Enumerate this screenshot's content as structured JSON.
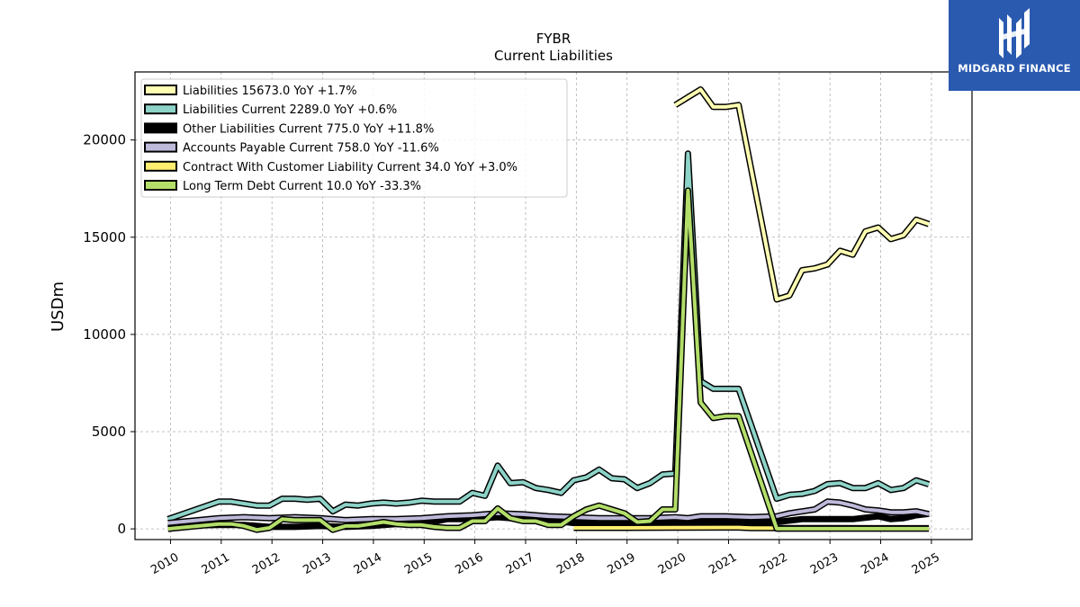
{
  "brand": {
    "name": "MIDGARD FINANCE",
    "color": "#2a5ab0"
  },
  "chart_data": {
    "type": "line",
    "title": "FYBR",
    "subtitle": "Current  Liabilities",
    "xlabel": "",
    "ylabel": "USDm",
    "xlim": [
      2009.3,
      2025.8
    ],
    "ylim": [
      -550,
      23500
    ],
    "x_ticks": [
      "2010",
      "2011",
      "2012",
      "2013",
      "2014",
      "2015",
      "2016",
      "2017",
      "2018",
      "2019",
      "2020",
      "2021",
      "2022",
      "2023",
      "2024",
      "2025"
    ],
    "y_ticks": [
      "0",
      "5000",
      "10000",
      "15000",
      "20000"
    ],
    "grid": true,
    "legend_position": "top-left",
    "series": [
      {
        "name": "Liabilities  15673.0 YoY +1.7%",
        "color": "#ffffb3",
        "points": [
          [
            2019.95,
            21800
          ],
          [
            2020.2,
            22200
          ],
          [
            2020.45,
            22600
          ],
          [
            2020.7,
            21700
          ],
          [
            2020.95,
            21700
          ],
          [
            2021.2,
            21800
          ],
          [
            2021.95,
            11800
          ],
          [
            2022.2,
            12000
          ],
          [
            2022.45,
            13300
          ],
          [
            2022.7,
            13400
          ],
          [
            2022.95,
            13600
          ],
          [
            2023.2,
            14300
          ],
          [
            2023.45,
            14100
          ],
          [
            2023.7,
            15300
          ],
          [
            2023.95,
            15500
          ],
          [
            2024.2,
            14900
          ],
          [
            2024.45,
            15100
          ],
          [
            2024.7,
            15900
          ],
          [
            2024.95,
            15673
          ]
        ]
      },
      {
        "name": "Liabilities Current  2289.0 YoY +0.6%",
        "color": "#8dd3c7",
        "points": [
          [
            2009.95,
            500
          ],
          [
            2010.95,
            1400
          ],
          [
            2011.2,
            1400
          ],
          [
            2011.45,
            1300
          ],
          [
            2011.7,
            1200
          ],
          [
            2011.95,
            1200
          ],
          [
            2012.2,
            1550
          ],
          [
            2012.45,
            1550
          ],
          [
            2012.7,
            1500
          ],
          [
            2012.95,
            1550
          ],
          [
            2013.2,
            900
          ],
          [
            2013.45,
            1250
          ],
          [
            2013.7,
            1200
          ],
          [
            2013.95,
            1300
          ],
          [
            2014.2,
            1350
          ],
          [
            2014.45,
            1300
          ],
          [
            2014.7,
            1350
          ],
          [
            2014.95,
            1450
          ],
          [
            2015.2,
            1400
          ],
          [
            2015.45,
            1400
          ],
          [
            2015.7,
            1400
          ],
          [
            2015.95,
            1850
          ],
          [
            2016.2,
            1700
          ],
          [
            2016.45,
            3250
          ],
          [
            2016.7,
            2350
          ],
          [
            2016.95,
            2400
          ],
          [
            2017.2,
            2100
          ],
          [
            2017.45,
            2000
          ],
          [
            2017.7,
            1850
          ],
          [
            2017.95,
            2500
          ],
          [
            2018.2,
            2650
          ],
          [
            2018.45,
            3050
          ],
          [
            2018.7,
            2600
          ],
          [
            2018.95,
            2550
          ],
          [
            2019.2,
            2100
          ],
          [
            2019.45,
            2350
          ],
          [
            2019.7,
            2800
          ],
          [
            2019.95,
            2850
          ],
          [
            2020.2,
            19300
          ],
          [
            2020.45,
            7600
          ],
          [
            2020.7,
            7200
          ],
          [
            2020.95,
            7200
          ],
          [
            2021.2,
            7200
          ],
          [
            2021.95,
            1550
          ],
          [
            2022.2,
            1750
          ],
          [
            2022.45,
            1800
          ],
          [
            2022.7,
            1950
          ],
          [
            2022.95,
            2300
          ],
          [
            2023.2,
            2350
          ],
          [
            2023.45,
            2100
          ],
          [
            2023.7,
            2100
          ],
          [
            2023.95,
            2350
          ],
          [
            2024.2,
            2000
          ],
          [
            2024.45,
            2100
          ],
          [
            2024.7,
            2500
          ],
          [
            2024.95,
            2289
          ]
        ]
      },
      {
        "name": "Other Liabilities Current  775.0 YoY +11.8%",
        "color": "#000000",
        "points": [
          [
            2009.95,
            150
          ],
          [
            2010.95,
            200
          ],
          [
            2011.45,
            200
          ],
          [
            2011.95,
            100
          ],
          [
            2012.45,
            100
          ],
          [
            2012.95,
            150
          ],
          [
            2013.45,
            100
          ],
          [
            2013.95,
            150
          ],
          [
            2014.45,
            250
          ],
          [
            2014.95,
            250
          ],
          [
            2015.45,
            500
          ],
          [
            2015.95,
            500
          ],
          [
            2016.45,
            600
          ],
          [
            2016.95,
            500
          ],
          [
            2017.45,
            450
          ],
          [
            2017.95,
            300
          ],
          [
            2018.45,
            300
          ],
          [
            2018.95,
            350
          ],
          [
            2019.45,
            350
          ],
          [
            2019.95,
            350
          ],
          [
            2020.45,
            350
          ],
          [
            2020.95,
            350
          ],
          [
            2021.45,
            350
          ],
          [
            2021.95,
            350
          ],
          [
            2022.45,
            500
          ],
          [
            2022.95,
            500
          ],
          [
            2023.45,
            500
          ],
          [
            2023.95,
            650
          ],
          [
            2024.2,
            500
          ],
          [
            2024.45,
            550
          ],
          [
            2024.7,
            700
          ],
          [
            2024.95,
            775
          ]
        ]
      },
      {
        "name": "Accounts Payable Current  758.0 YoY -11.6%",
        "color": "#bebada",
        "points": [
          [
            2009.95,
            300
          ],
          [
            2010.95,
            550
          ],
          [
            2011.45,
            600
          ],
          [
            2011.95,
            550
          ],
          [
            2012.45,
            600
          ],
          [
            2012.95,
            550
          ],
          [
            2013.2,
            500
          ],
          [
            2013.45,
            450
          ],
          [
            2013.95,
            500
          ],
          [
            2014.45,
            500
          ],
          [
            2014.95,
            550
          ],
          [
            2015.45,
            650
          ],
          [
            2015.95,
            700
          ],
          [
            2016.45,
            800
          ],
          [
            2016.95,
            750
          ],
          [
            2017.45,
            650
          ],
          [
            2017.95,
            600
          ],
          [
            2018.45,
            550
          ],
          [
            2018.95,
            550
          ],
          [
            2019.45,
            550
          ],
          [
            2019.95,
            600
          ],
          [
            2020.2,
            550
          ],
          [
            2020.45,
            650
          ],
          [
            2020.95,
            650
          ],
          [
            2021.45,
            600
          ],
          [
            2021.95,
            650
          ],
          [
            2022.2,
            800
          ],
          [
            2022.7,
            1000
          ],
          [
            2022.95,
            1400
          ],
          [
            2023.2,
            1350
          ],
          [
            2023.45,
            1200
          ],
          [
            2023.7,
            1000
          ],
          [
            2023.95,
            950
          ],
          [
            2024.2,
            850
          ],
          [
            2024.45,
            850
          ],
          [
            2024.7,
            900
          ],
          [
            2024.95,
            758
          ]
        ]
      },
      {
        "name": "Contract With Customer Liability Current  34.0 YoY +3.0%",
        "color": "#ffed6f",
        "points": [
          [
            2017.95,
            50
          ],
          [
            2018.95,
            50
          ],
          [
            2019.95,
            60
          ],
          [
            2020.95,
            70
          ],
          [
            2021.2,
            70
          ],
          [
            2021.45,
            40
          ],
          [
            2021.95,
            40
          ],
          [
            2022.95,
            40
          ],
          [
            2023.95,
            35
          ],
          [
            2024.95,
            34
          ]
        ]
      },
      {
        "name": "Long Term Debt Current  10.0 YoY -33.3%",
        "color": "#b3de69",
        "points": [
          [
            2009.95,
            0
          ],
          [
            2010.95,
            250
          ],
          [
            2011.2,
            250
          ],
          [
            2011.45,
            150
          ],
          [
            2011.7,
            -50
          ],
          [
            2011.95,
            50
          ],
          [
            2012.2,
            500
          ],
          [
            2012.45,
            450
          ],
          [
            2012.7,
            450
          ],
          [
            2012.95,
            450
          ],
          [
            2013.2,
            -50
          ],
          [
            2013.45,
            150
          ],
          [
            2013.7,
            150
          ],
          [
            2013.95,
            250
          ],
          [
            2014.2,
            350
          ],
          [
            2014.45,
            250
          ],
          [
            2014.7,
            200
          ],
          [
            2014.95,
            200
          ],
          [
            2015.2,
            100
          ],
          [
            2015.45,
            50
          ],
          [
            2015.7,
            50
          ],
          [
            2015.95,
            400
          ],
          [
            2016.2,
            400
          ],
          [
            2016.45,
            1050
          ],
          [
            2016.7,
            550
          ],
          [
            2016.95,
            400
          ],
          [
            2017.2,
            400
          ],
          [
            2017.45,
            200
          ],
          [
            2017.7,
            200
          ],
          [
            2017.95,
            650
          ],
          [
            2018.2,
            1000
          ],
          [
            2018.45,
            1200
          ],
          [
            2018.7,
            1000
          ],
          [
            2018.95,
            800
          ],
          [
            2019.2,
            350
          ],
          [
            2019.45,
            400
          ],
          [
            2019.7,
            1000
          ],
          [
            2019.95,
            1000
          ],
          [
            2020.2,
            17400
          ],
          [
            2020.45,
            6500
          ],
          [
            2020.7,
            5700
          ],
          [
            2020.95,
            5800
          ],
          [
            2021.2,
            5800
          ],
          [
            2021.95,
            10
          ],
          [
            2022.95,
            10
          ],
          [
            2023.95,
            10
          ],
          [
            2024.95,
            10
          ]
        ]
      }
    ]
  }
}
